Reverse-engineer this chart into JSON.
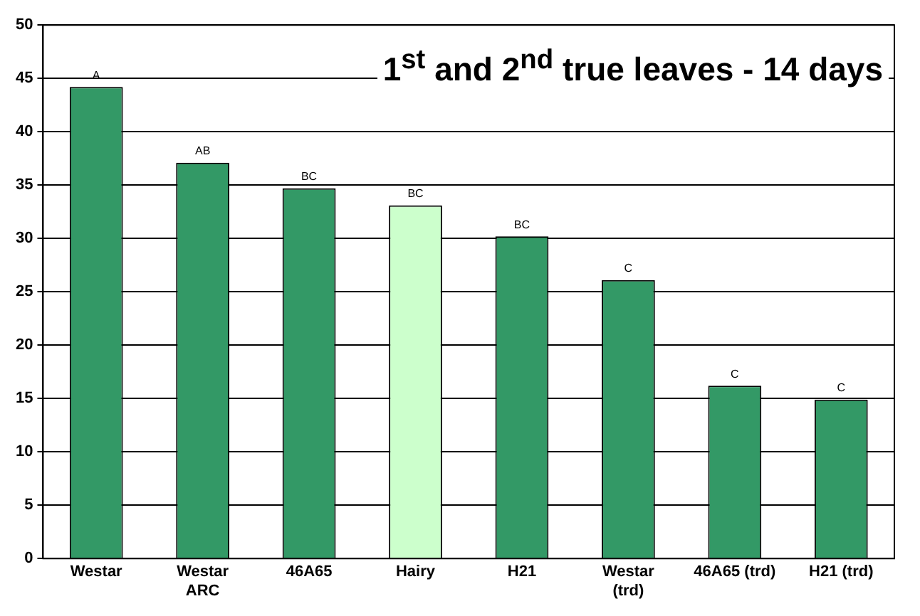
{
  "chart_data": {
    "type": "bar",
    "title": "1$^{st}$ and 2$^{nd}$ true leaves - 14 days",
    "categories": [
      "Westar",
      "Westar ARC",
      "46A65",
      "Hairy",
      "H21",
      "Westar (trd)",
      "46A65 (trd)",
      "H21 (trd)"
    ],
    "values": [
      44.2,
      37.1,
      34.7,
      33.1,
      30.2,
      26.1,
      16.2,
      14.9
    ],
    "colors": [
      "#339966",
      "#339966",
      "#339966",
      "#ccffcc",
      "#339966",
      "#339966",
      "#339966",
      "#339966"
    ],
    "value_labels": [
      "A",
      "AB",
      "BC",
      "BC",
      "BC",
      "C",
      "C",
      "C"
    ],
    "ylim": [
      0,
      50
    ],
    "yticks": [
      0,
      5,
      10,
      15,
      20,
      25,
      30,
      35,
      40,
      45,
      50
    ],
    "grid": "y",
    "legend": false
  }
}
